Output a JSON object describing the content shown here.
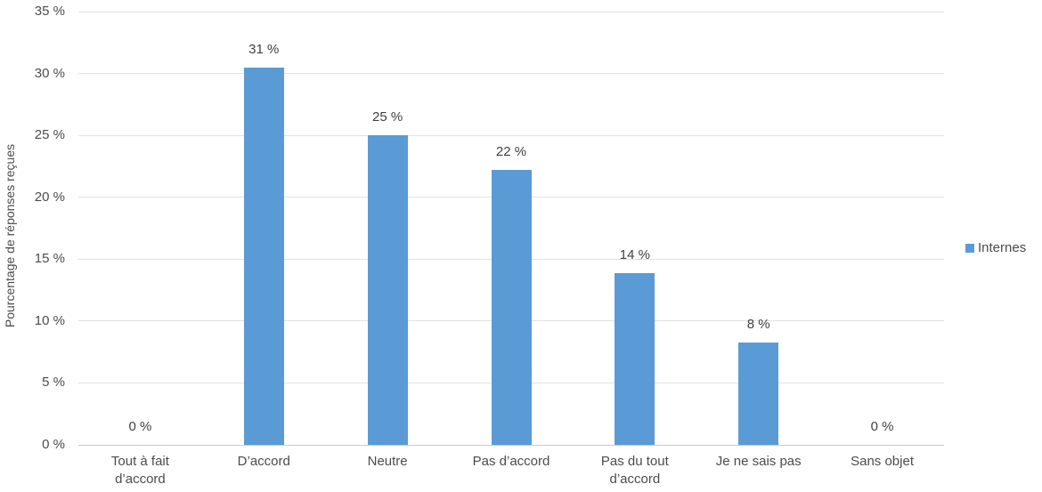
{
  "chart_data": {
    "type": "bar",
    "title": "",
    "xlabel": "",
    "ylabel": "Pourcentage de réponses reçues",
    "categories": [
      "Tout à fait\nd’accord",
      "D’accord",
      "Neutre",
      "Pas d’accord",
      "Pas du tout\nd’accord",
      "Je ne sais pas",
      "Sans objet"
    ],
    "series": [
      {
        "name": "Internes",
        "values": [
          0,
          30.5,
          25,
          22.2,
          13.9,
          8.3,
          0
        ],
        "data_labels": [
          "0 %",
          "31 %",
          "25 %",
          "22 %",
          "14 %",
          "8 %",
          "0 %"
        ],
        "color": "#5b9bd5"
      }
    ],
    "y_ticks": [
      {
        "value": 0,
        "label": "0 %"
      },
      {
        "value": 5,
        "label": "5 %"
      },
      {
        "value": 10,
        "label": "10 %"
      },
      {
        "value": 15,
        "label": "15 %"
      },
      {
        "value": 20,
        "label": "20 %"
      },
      {
        "value": 25,
        "label": "25 %"
      },
      {
        "value": 30,
        "label": "30 %"
      },
      {
        "value": 35,
        "label": "35 %"
      }
    ],
    "ylim": [
      0,
      35
    ],
    "grid": true,
    "legend_position": "right"
  },
  "colors": {
    "bar": "#5b9bd5",
    "gridline": "#e2e2e2",
    "axis_line": "#c9c9c9",
    "text": "#4c4c4c"
  }
}
